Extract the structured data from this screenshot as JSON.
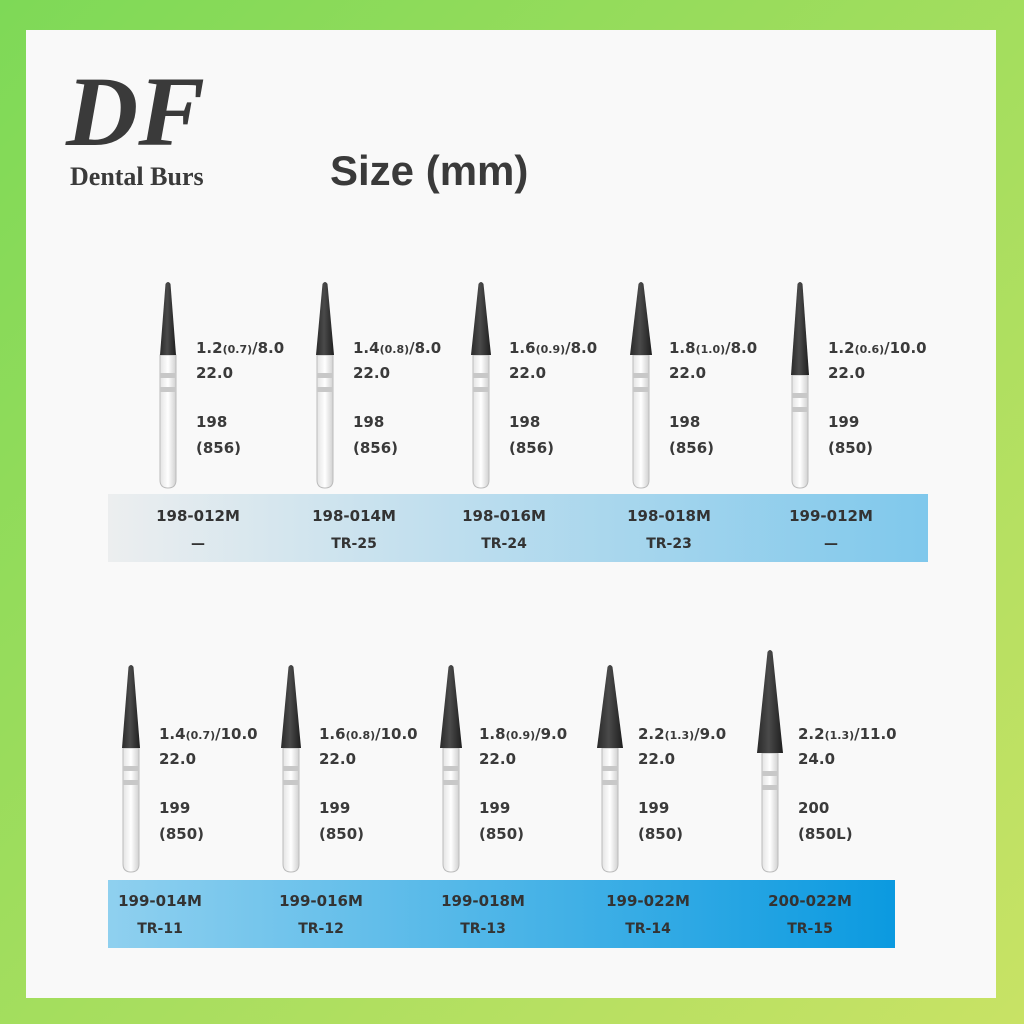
{
  "brand": {
    "logo": "DF",
    "name": "Dental Burs"
  },
  "title": "Size (mm)",
  "rows": [
    {
      "items": [
        {
          "size": "1.2",
          "inner": "(0.7)",
          "tip": "/8.0",
          "length": "22.0",
          "shape": "198",
          "iso": "(856)",
          "code": "198-012M",
          "ref": "—"
        },
        {
          "size": "1.4",
          "inner": "(0.8)",
          "tip": "/8.0",
          "length": "22.0",
          "shape": "198",
          "iso": "(856)",
          "code": "198-014M",
          "ref": "TR-25"
        },
        {
          "size": "1.6",
          "inner": "(0.9)",
          "tip": "/8.0",
          "length": "22.0",
          "shape": "198",
          "iso": "(856)",
          "code": "198-016M",
          "ref": "TR-24"
        },
        {
          "size": "1.8",
          "inner": "(1.0)",
          "tip": "/8.0",
          "length": "22.0",
          "shape": "198",
          "iso": "(856)",
          "code": "198-018M",
          "ref": "TR-23"
        },
        {
          "size": "1.2",
          "inner": "(0.6)",
          "tip": "/10.0",
          "length": "22.0",
          "shape": "199",
          "iso": "(850)",
          "code": "199-012M",
          "ref": "—"
        }
      ]
    },
    {
      "items": [
        {
          "size": "1.4",
          "inner": "(0.7)",
          "tip": "/10.0",
          "length": "22.0",
          "shape": "199",
          "iso": "(850)",
          "code": "199-014M",
          "ref": "TR-11"
        },
        {
          "size": "1.6",
          "inner": "(0.8)",
          "tip": "/10.0",
          "length": "22.0",
          "shape": "199",
          "iso": "(850)",
          "code": "199-016M",
          "ref": "TR-12"
        },
        {
          "size": "1.8",
          "inner": "(0.9)",
          "tip": "/9.0",
          "length": "22.0",
          "shape": "199",
          "iso": "(850)",
          "code": "199-018M",
          "ref": "TR-13"
        },
        {
          "size": "2.2",
          "inner": "(1.3)",
          "tip": "/9.0",
          "length": "22.0",
          "shape": "199",
          "iso": "(850)",
          "code": "199-022M",
          "ref": "TR-14"
        },
        {
          "size": "2.2",
          "inner": "(1.3)",
          "tip": "/11.0",
          "length": "24.0",
          "shape": "200",
          "iso": "(850L)",
          "code": "200-022M",
          "ref": "TR-15"
        }
      ]
    }
  ]
}
